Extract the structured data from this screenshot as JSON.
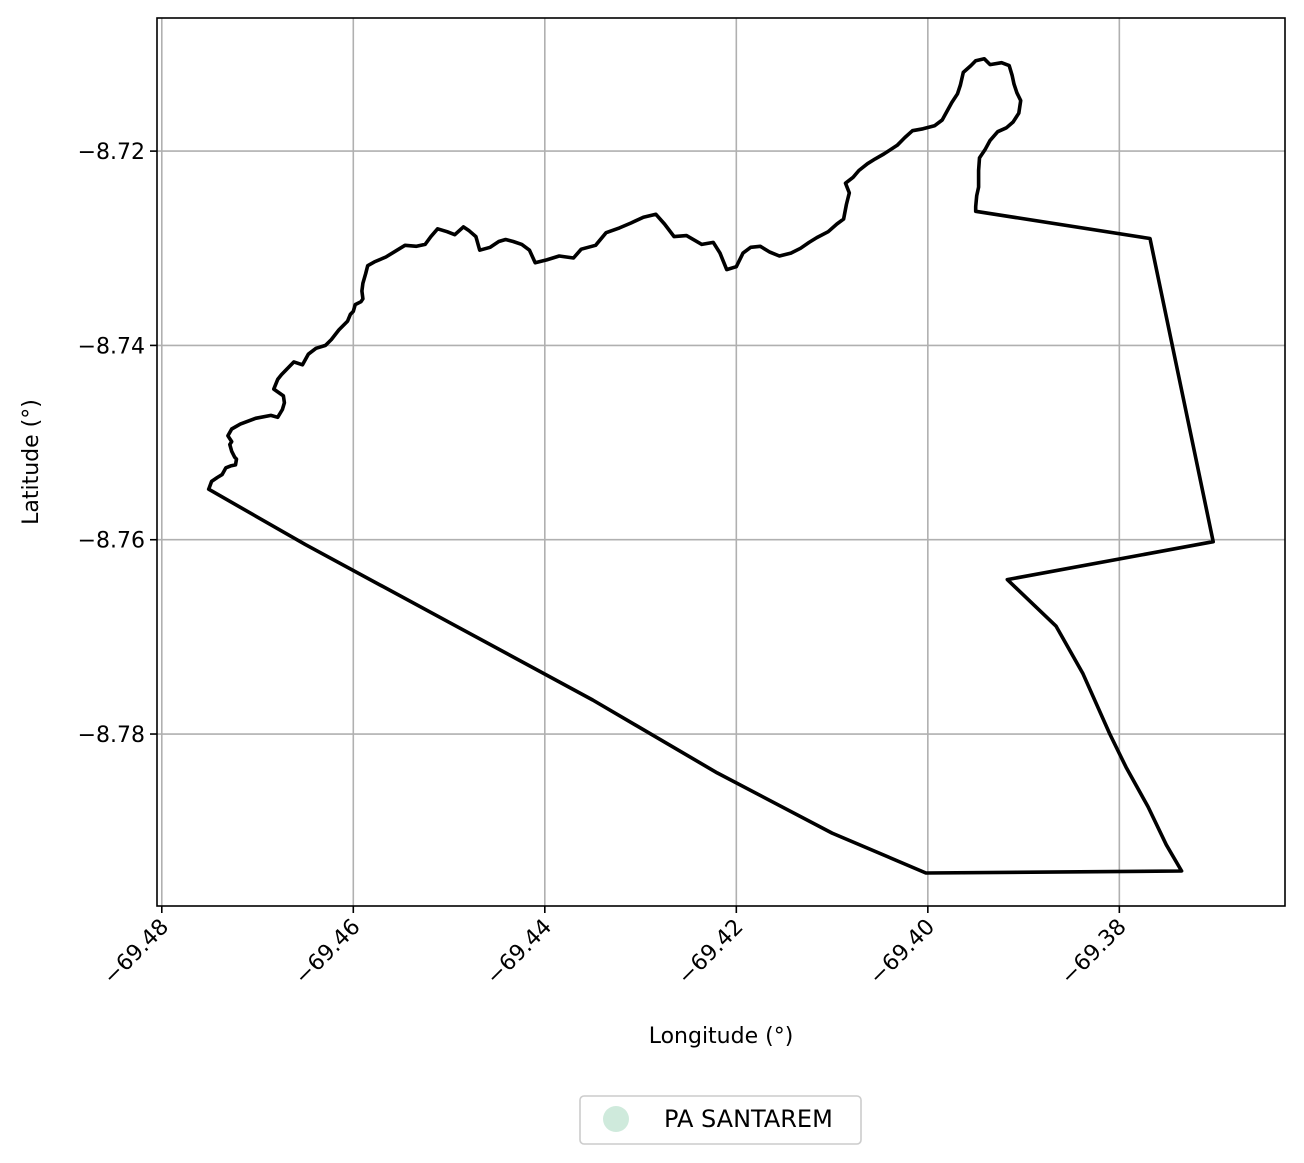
{
  "chart_data": {
    "type": "map",
    "xlabel": "Longitude (°)",
    "ylabel": "Latitude (°)",
    "xlim": [
      -69.4805,
      -69.3627
    ],
    "ylim": [
      -8.7977,
      -8.7063
    ],
    "xticks": [
      -69.48,
      -69.46,
      -69.44,
      -69.42,
      -69.4,
      -69.38
    ],
    "xtick_labels": [
      "−69.48",
      "−69.46",
      "−69.44",
      "−69.42",
      "−69.40",
      "−69.38"
    ],
    "yticks": [
      -8.72,
      -8.74,
      -8.76,
      -8.78
    ],
    "ytick_labels": [
      "−8.72",
      "−8.74",
      "−8.76",
      "−8.78"
    ],
    "grid": true,
    "legend": {
      "placement": "bottom-center",
      "entries": [
        {
          "label": "PA SANTAREM",
          "color": "#cfeadc"
        }
      ]
    },
    "boundary_color": "#000000",
    "boundary": [
      [
        -69.4751,
        -8.7548
      ],
      [
        -69.4748,
        -8.754
      ],
      [
        -69.4742,
        -8.7536
      ],
      [
        -69.4737,
        -8.7533
      ],
      [
        -69.4733,
        -8.7526
      ],
      [
        -69.4728,
        -8.7524
      ],
      [
        -69.4723,
        -8.7523
      ],
      [
        -69.4722,
        -8.7517
      ],
      [
        -69.4724,
        -8.7515
      ],
      [
        -69.4727,
        -8.7509
      ],
      [
        -69.4729,
        -8.7502
      ],
      [
        -69.4727,
        -8.7499
      ],
      [
        -69.4731,
        -8.7493
      ],
      [
        -69.4727,
        -8.7486
      ],
      [
        -69.4718,
        -8.7481
      ],
      [
        -69.4702,
        -8.7475
      ],
      [
        -69.4686,
        -8.7472
      ],
      [
        -69.4679,
        -8.7474
      ],
      [
        -69.4674,
        -8.7466
      ],
      [
        -69.4672,
        -8.7459
      ],
      [
        -69.4673,
        -8.7452
      ],
      [
        -69.4683,
        -8.7445
      ],
      [
        -69.4679,
        -8.7435
      ],
      [
        -69.4675,
        -8.743
      ],
      [
        -69.4662,
        -8.7417
      ],
      [
        -69.4653,
        -8.742
      ],
      [
        -69.4647,
        -8.7409
      ],
      [
        -69.4639,
        -8.7403
      ],
      [
        -69.4629,
        -8.74
      ],
      [
        -69.4623,
        -8.7394
      ],
      [
        -69.4615,
        -8.7384
      ],
      [
        -69.4606,
        -8.7375
      ],
      [
        -69.4603,
        -8.7368
      ],
      [
        -69.46,
        -8.7365
      ],
      [
        -69.4598,
        -8.7358
      ],
      [
        -69.4592,
        -8.7355
      ],
      [
        -69.459,
        -8.7352
      ],
      [
        -69.4591,
        -8.7344
      ],
      [
        -69.459,
        -8.7336
      ],
      [
        -69.4587,
        -8.7326
      ],
      [
        -69.4585,
        -8.7318
      ],
      [
        -69.4578,
        -8.7314
      ],
      [
        -69.4566,
        -8.7309
      ],
      [
        -69.4556,
        -8.7303
      ],
      [
        -69.4546,
        -8.7297
      ],
      [
        -69.4534,
        -8.7298
      ],
      [
        -69.4525,
        -8.7296
      ],
      [
        -69.4519,
        -8.7288
      ],
      [
        -69.4512,
        -8.728
      ],
      [
        -69.4502,
        -8.7283
      ],
      [
        -69.4494,
        -8.7286
      ],
      [
        -69.4485,
        -8.7278
      ],
      [
        -69.4479,
        -8.7282
      ],
      [
        -69.4472,
        -8.7288
      ],
      [
        -69.4468,
        -8.7302
      ],
      [
        -69.4457,
        -8.7299
      ],
      [
        -69.4448,
        -8.7293
      ],
      [
        -69.4441,
        -8.7291
      ],
      [
        -69.4433,
        -8.7293
      ],
      [
        -69.4424,
        -8.7296
      ],
      [
        -69.4416,
        -8.7302
      ],
      [
        -69.441,
        -8.7315
      ],
      [
        -69.4398,
        -8.7312
      ],
      [
        -69.4385,
        -8.7308
      ],
      [
        -69.437,
        -8.731
      ],
      [
        -69.4362,
        -8.7301
      ],
      [
        -69.4347,
        -8.7297
      ],
      [
        -69.4336,
        -8.7284
      ],
      [
        -69.4322,
        -8.7279
      ],
      [
        -69.431,
        -8.7274
      ],
      [
        -69.4297,
        -8.7268
      ],
      [
        -69.4284,
        -8.7265
      ],
      [
        -69.4275,
        -8.7275
      ],
      [
        -69.4265,
        -8.7288
      ],
      [
        -69.4252,
        -8.7287
      ],
      [
        -69.4236,
        -8.7296
      ],
      [
        -69.4224,
        -8.7294
      ],
      [
        -69.4217,
        -8.7305
      ],
      [
        -69.421,
        -8.7322
      ],
      [
        -69.42,
        -8.7319
      ],
      [
        -69.4193,
        -8.7305
      ],
      [
        -69.4185,
        -8.7299
      ],
      [
        -69.4175,
        -8.7298
      ],
      [
        -69.4165,
        -8.7304
      ],
      [
        -69.4155,
        -8.7308
      ],
      [
        -69.4143,
        -8.7305
      ],
      [
        -69.4133,
        -8.73
      ],
      [
        -69.4124,
        -8.7294
      ],
      [
        -69.4116,
        -8.7289
      ],
      [
        -69.4104,
        -8.7283
      ],
      [
        -69.4095,
        -8.7275
      ],
      [
        -69.4088,
        -8.727
      ],
      [
        -69.4085,
        -8.7255
      ],
      [
        -69.4082,
        -8.7243
      ],
      [
        -69.4086,
        -8.7233
      ],
      [
        -69.4078,
        -8.7227
      ],
      [
        -69.4072,
        -8.722
      ],
      [
        -69.4063,
        -8.7213
      ],
      [
        -69.4055,
        -8.7208
      ],
      [
        -69.4046,
        -8.7203
      ],
      [
        -69.4032,
        -8.7194
      ],
      [
        -69.4024,
        -8.7186
      ],
      [
        -69.4016,
        -8.7179
      ],
      [
        -69.4005,
        -8.7177
      ],
      [
        -69.3993,
        -8.7174
      ],
      [
        -69.3985,
        -8.7168
      ],
      [
        -69.398,
        -8.7159
      ],
      [
        -69.3975,
        -8.715
      ],
      [
        -69.3969,
        -8.7141
      ],
      [
        -69.3966,
        -8.7132
      ],
      [
        -69.3963,
        -8.7119
      ],
      [
        -69.3955,
        -8.7112
      ],
      [
        -69.395,
        -8.7107
      ],
      [
        -69.3941,
        -8.7105
      ],
      [
        -69.3935,
        -8.7111
      ],
      [
        -69.3923,
        -8.7109
      ],
      [
        -69.3915,
        -8.7112
      ],
      [
        -69.3912,
        -8.7122
      ],
      [
        -69.391,
        -8.7131
      ],
      [
        -69.3907,
        -8.714
      ],
      [
        -69.3903,
        -8.7148
      ],
      [
        -69.3905,
        -8.7161
      ],
      [
        -69.3911,
        -8.717
      ],
      [
        -69.3918,
        -8.7176
      ],
      [
        -69.3927,
        -8.718
      ],
      [
        -69.3935,
        -8.7189
      ],
      [
        -69.394,
        -8.7198
      ],
      [
        -69.3946,
        -8.7207
      ],
      [
        -69.3947,
        -8.722
      ],
      [
        -69.3947,
        -8.7237
      ],
      [
        -69.3949,
        -8.7246
      ],
      [
        -69.395,
        -8.7257
      ],
      [
        -69.395,
        -8.7262
      ],
      [
        -69.3768,
        -8.729
      ],
      [
        -69.3702,
        -8.7602
      ],
      [
        -69.3917,
        -8.7641
      ],
      [
        -69.3866,
        -8.7689
      ],
      [
        -69.3838,
        -8.7738
      ],
      [
        -69.381,
        -8.78
      ],
      [
        -69.3793,
        -8.7834
      ],
      [
        -69.377,
        -8.7875
      ],
      [
        -69.3751,
        -8.7914
      ],
      [
        -69.3735,
        -8.7941
      ],
      [
        -69.4002,
        -8.7943
      ],
      [
        -69.41,
        -8.7902
      ],
      [
        -69.422,
        -8.784
      ],
      [
        -69.435,
        -8.7765
      ],
      [
        -69.45,
        -8.7685
      ],
      [
        -69.465,
        -8.7605
      ],
      [
        -69.4751,
        -8.7548
      ]
    ]
  }
}
